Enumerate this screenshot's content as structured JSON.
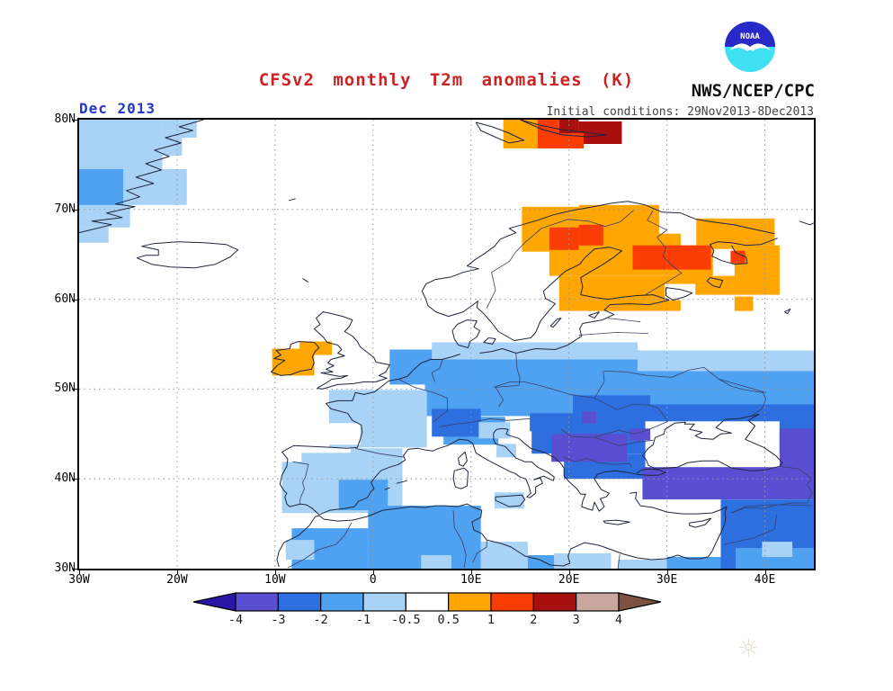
{
  "header": {
    "title": "CFSv2 monthly T2m anomalies (K)",
    "agency": "NWS/NCEP/CPC",
    "noaa_logo_text": "NOAA",
    "date_label": "Dec 2013",
    "init_conditions": "Initial conditions: 29Nov2013-8Dec2013"
  },
  "colors": {
    "title": "#CC2222",
    "date": "#2436C8",
    "init": "#444444",
    "agency": "#111111",
    "grid": "#999999",
    "coast": "#20263E",
    "border": "#39406A",
    "frame": "#000000",
    "noaa_dome": "#2929C8",
    "noaa_wave": "#3FE0F2",
    "watermark": "#E4DDD2"
  },
  "map": {
    "lon_range": [
      -30,
      45
    ],
    "lat_range": [
      30,
      80
    ],
    "x_ticks": [
      {
        "v": -30,
        "t": "30W"
      },
      {
        "v": -20,
        "t": "20W"
      },
      {
        "v": -10,
        "t": "10W"
      },
      {
        "v": 0,
        "t": "0"
      },
      {
        "v": 10,
        "t": "10E"
      },
      {
        "v": 20,
        "t": "20E"
      },
      {
        "v": 30,
        "t": "30E"
      },
      {
        "v": 40,
        "t": "40E"
      }
    ],
    "y_ticks": [
      {
        "v": 80,
        "t": "80N"
      },
      {
        "v": 70,
        "t": "70N"
      },
      {
        "v": 60,
        "t": "60N"
      },
      {
        "v": 50,
        "t": "50N"
      },
      {
        "v": 40,
        "t": "40N"
      },
      {
        "v": 30,
        "t": "30N"
      }
    ],
    "grid_lons": [
      -20,
      -10,
      0,
      10,
      20,
      30,
      40
    ],
    "grid_lats": [
      70,
      60,
      50,
      40
    ],
    "cells": [
      [
        "n1",
        -30,
        74.5,
        -21.5,
        80
      ],
      [
        "n1",
        -21.5,
        78,
        -18,
        80
      ],
      [
        "n1",
        -21.5,
        76,
        -19.5,
        78
      ],
      [
        "n2",
        -30,
        70,
        -25.5,
        74.5
      ],
      [
        "n1",
        -25.5,
        70.5,
        -19,
        74.5
      ],
      [
        "n1",
        -30,
        68,
        -24.8,
        70.5
      ],
      [
        "n1",
        -30,
        66.3,
        -27,
        68
      ],
      [
        "p1",
        13.3,
        76.8,
        16.8,
        80
      ],
      [
        "p2",
        16.8,
        78.5,
        19,
        80
      ],
      [
        "p3",
        19,
        78.5,
        21,
        80
      ],
      [
        "p3",
        21,
        77.3,
        25.4,
        79.8
      ],
      [
        "p2",
        16.8,
        76.8,
        21.5,
        78.5
      ],
      [
        "p1",
        15.2,
        65.3,
        21,
        70.3
      ],
      [
        "p1",
        21,
        66,
        29.2,
        70.5
      ],
      [
        "p1",
        33,
        66,
        41,
        69
      ],
      [
        "p1",
        18,
        62.6,
        31.4,
        67.3
      ],
      [
        "p1",
        31.4,
        60.5,
        41.5,
        66
      ],
      [
        "p1",
        19,
        58.7,
        31.4,
        62.6
      ],
      [
        "p1",
        36.9,
        58.7,
        38.8,
        60.3
      ],
      [
        "w",
        34.7,
        62.6,
        36.9,
        65.6
      ],
      [
        "p2",
        18,
        65.5,
        21,
        68
      ],
      [
        "p2",
        21,
        66,
        23.5,
        68.3
      ],
      [
        "p2",
        26.5,
        63.3,
        34.5,
        66
      ],
      [
        "p2",
        36.5,
        64,
        38,
        65.4
      ],
      [
        "w",
        29.8,
        59.9,
        32.9,
        61.7
      ],
      [
        "p1",
        -10.3,
        51.5,
        -6,
        54.5
      ],
      [
        "p1",
        -7.5,
        53.8,
        -4.2,
        55.3
      ],
      [
        "n2",
        5.3,
        47,
        45,
        53.3
      ],
      [
        "n2",
        1.7,
        50.5,
        7,
        54.4
      ],
      [
        "n1",
        6,
        53.3,
        27,
        55.2
      ],
      [
        "n1",
        27,
        52,
        45,
        54.3
      ],
      [
        "n1",
        -4.5,
        43.5,
        5.5,
        49.9
      ],
      [
        "w",
        -4.6,
        43.8,
        -1.3,
        46.2
      ],
      [
        "n1",
        -9.3,
        36.2,
        3,
        43.4
      ],
      [
        "w",
        -9.5,
        41.9,
        -7.3,
        43.4
      ],
      [
        "w",
        -7.3,
        42.9,
        -2.3,
        43.4
      ],
      [
        "n2",
        -3.5,
        36.5,
        1.5,
        39.9
      ],
      [
        "n2",
        7.2,
        43.8,
        13.5,
        46.9
      ],
      [
        "n3",
        6,
        44.7,
        11,
        47.8
      ],
      [
        "n3",
        16,
        42.8,
        45,
        47.3
      ],
      [
        "n3",
        20.4,
        47.3,
        28.3,
        49.3
      ],
      [
        "n3",
        28.3,
        46.4,
        45,
        48.3
      ],
      [
        "n3",
        19.5,
        40,
        28,
        42.8
      ],
      [
        "w",
        12.8,
        42.3,
        16.2,
        45.3
      ],
      [
        "n1",
        10.8,
        44.5,
        14,
        46.3
      ],
      [
        "n1",
        12.6,
        42.4,
        14.6,
        43.9
      ],
      [
        "w",
        27.8,
        41.3,
        41.5,
        46.4
      ],
      [
        "n4",
        18.2,
        41.9,
        25.9,
        45
      ],
      [
        "n4",
        21.3,
        46.2,
        22.8,
        47.5
      ],
      [
        "n4",
        26.2,
        44.3,
        28.3,
        45.6
      ],
      [
        "n4",
        27.5,
        37.7,
        45,
        41.3
      ],
      [
        "n4",
        41.5,
        41,
        45,
        45.6
      ],
      [
        "n3",
        35.5,
        30,
        45,
        37.7
      ],
      [
        "n2",
        37,
        30,
        45,
        32.3
      ],
      [
        "n1",
        39.7,
        31.3,
        42.8,
        33
      ],
      [
        "n1",
        12.4,
        36.7,
        15.4,
        38.5
      ],
      [
        "n2",
        -8.3,
        30,
        -0.5,
        34.5
      ],
      [
        "n1",
        -8.9,
        31,
        -6,
        33.2
      ],
      [
        "n2",
        -0.5,
        30,
        11,
        37
      ],
      [
        "n1",
        4.9,
        30,
        8,
        31.5
      ],
      [
        "n1",
        11,
        30,
        15.8,
        33
      ],
      [
        "n2",
        15.8,
        30,
        18.5,
        31.5
      ],
      [
        "n1",
        18.5,
        30,
        24.3,
        31.7
      ],
      [
        "n1",
        25,
        30,
        30,
        31
      ],
      [
        "n2",
        30,
        30,
        35.5,
        31.3
      ]
    ]
  },
  "legend": {
    "labels": [
      "-4",
      "-3",
      "-2",
      "-1",
      "-0.5",
      "0.5",
      "1",
      "2",
      "3",
      "4"
    ],
    "segment_levels": [
      "n5",
      "n4",
      "n3",
      "n2",
      "n1",
      "w",
      "p1",
      "p2",
      "p3",
      "p4",
      "p5"
    ],
    "level_colors": {
      "n5": "#2A17A8",
      "n4": "#5A4FD2",
      "n3": "#2D6FDF",
      "n2": "#4FA1F1",
      "n1": "#A8D3F7",
      "w": "#FFFFFF",
      "p1": "#FFA600",
      "p2": "#FA3D05",
      "p3": "#A80F0F",
      "p4": "#C9A79E",
      "p5": "#7B5340"
    }
  },
  "watermark": "☼"
}
